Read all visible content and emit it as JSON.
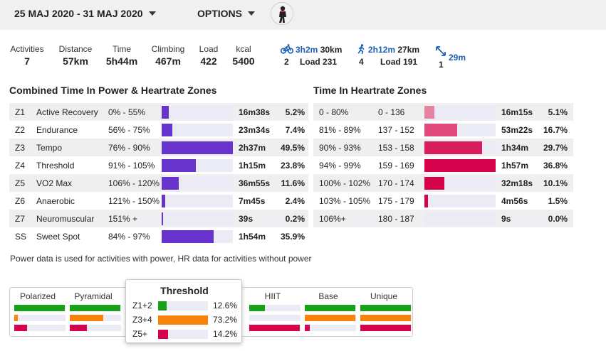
{
  "header": {
    "date_range": "25 MAJ 2020 - 31 MAJ 2020",
    "options_label": "OPTIONS"
  },
  "stats": [
    {
      "label": "Activities",
      "value": "7"
    },
    {
      "label": "Distance",
      "value": "57km"
    },
    {
      "label": "Time",
      "value": "5h44m"
    },
    {
      "label": "Climbing",
      "value": "467m"
    },
    {
      "label": "Load",
      "value": "422"
    },
    {
      "label": "kcal",
      "value": "5400"
    }
  ],
  "sports": [
    {
      "icon": "bicycle-icon",
      "time": "3h2m",
      "distance": "30km",
      "count": "2",
      "load": "Load 231"
    },
    {
      "icon": "running-icon",
      "time": "2h12m",
      "distance": "27km",
      "count": "4",
      "load": "Load 191"
    },
    {
      "icon": "expand-arrows-icon",
      "time": "29m",
      "distance": "",
      "count": "1",
      "load": ""
    }
  ],
  "power_zones": {
    "title": "Combined Time In Power & Heartrate Zones",
    "rows": [
      {
        "id": "Z1",
        "name": "Active Recovery",
        "range": "0% - 55%",
        "time": "16m38s",
        "pct": "5.2%",
        "fill": 0.104
      },
      {
        "id": "Z2",
        "name": "Endurance",
        "range": "56% - 75%",
        "time": "23m34s",
        "pct": "7.4%",
        "fill": 0.15
      },
      {
        "id": "Z3",
        "name": "Tempo",
        "range": "76% - 90%",
        "time": "2h37m",
        "pct": "49.5%",
        "fill": 1.0
      },
      {
        "id": "Z4",
        "name": "Threshold",
        "range": "91% - 105%",
        "time": "1h15m",
        "pct": "23.8%",
        "fill": 0.48
      },
      {
        "id": "Z5",
        "name": "VO2 Max",
        "range": "106% - 120%",
        "time": "36m55s",
        "pct": "11.6%",
        "fill": 0.235
      },
      {
        "id": "Z6",
        "name": "Anaerobic",
        "range": "121% - 150%",
        "time": "7m45s",
        "pct": "2.4%",
        "fill": 0.05
      },
      {
        "id": "Z7",
        "name": "Neuromuscular",
        "range": "151% +",
        "time": "39s",
        "pct": "0.2%",
        "fill": 0.01
      },
      {
        "id": "SS",
        "name": "Sweet Spot",
        "range": "84% - 97%",
        "time": "1h54m",
        "pct": "35.9%",
        "fill": 0.725
      }
    ]
  },
  "hr_zones": {
    "title": "Time In Heartrate Zones",
    "rows": [
      {
        "range": "0 - 80%",
        "bpm": "0 - 136",
        "time": "16m15s",
        "pct": "5.1%",
        "fill": 0.14,
        "color": "#e8839f"
      },
      {
        "range": "81% - 89%",
        "bpm": "137 - 152",
        "time": "53m22s",
        "pct": "16.7%",
        "fill": 0.46,
        "color": "#e24a7e"
      },
      {
        "range": "90% - 93%",
        "bpm": "153 - 158",
        "time": "1h34m",
        "pct": "29.7%",
        "fill": 0.81,
        "color": "#d81d5e"
      },
      {
        "range": "94% - 99%",
        "bpm": "159 - 169",
        "time": "1h57m",
        "pct": "36.8%",
        "fill": 1.0,
        "color": "#d6034c"
      },
      {
        "range": "100% - 102%",
        "bpm": "170 - 174",
        "time": "32m18s",
        "pct": "10.1%",
        "fill": 0.275,
        "color": "#d6034c"
      },
      {
        "range": "103% - 105%",
        "bpm": "175 - 179",
        "time": "4m56s",
        "pct": "1.5%",
        "fill": 0.05,
        "color": "#d6034c"
      },
      {
        "range": "106%+",
        "bpm": "180 - 187",
        "time": "9s",
        "pct": "0.0%",
        "fill": 0.0,
        "color": "#d6034c"
      }
    ]
  },
  "note": "Power data is used for activities with power, HR data for activities without power",
  "distribution": {
    "cards": [
      {
        "name": "Polarized",
        "bars": [
          0.98,
          0.07,
          0.25
        ]
      },
      {
        "name": "Pyramidal",
        "bars": [
          0.98,
          0.65,
          0.33
        ]
      },
      {
        "name": "HIIT",
        "bars": [
          0.3,
          0.0,
          0.98
        ]
      },
      {
        "name": "Base",
        "bars": [
          0.98,
          0.98,
          0.1
        ]
      },
      {
        "name": "Unique",
        "bars": [
          0.98,
          0.98,
          0.98
        ]
      }
    ],
    "popup": {
      "title": "Threshold",
      "rows": [
        {
          "label": "Z1+2",
          "value": "12.6%",
          "fill": 0.172
        },
        {
          "label": "Z3+4",
          "value": "73.2%",
          "fill": 1.0
        },
        {
          "label": "Z5+",
          "value": "14.2%",
          "fill": 0.194
        }
      ]
    },
    "colors": {
      "low": "#18a118",
      "mid": "#f9830a",
      "high": "#d6034c"
    }
  },
  "colors": {
    "power_bar": "#6633cc",
    "link": "#1a5fb4"
  }
}
